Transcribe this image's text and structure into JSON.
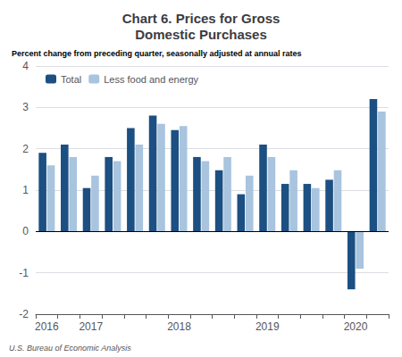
{
  "chart_data": {
    "type": "bar",
    "title": "Chart 6. Prices for Gross\nDomestic Purchases",
    "subtitle": "Percent change from preceding quarter, seasonally adjusted at annual rates",
    "annotations": [
      "U.S. Bureau of Economic Analysis"
    ],
    "categories": [
      "2016",
      null,
      "2017",
      null,
      null,
      null,
      "2018",
      null,
      null,
      null,
      "2019",
      null,
      null,
      null,
      "2020",
      null
    ],
    "series": [
      {
        "name": "Total",
        "color": "#1c4f82",
        "values": [
          1.9,
          2.1,
          1.05,
          1.8,
          2.5,
          2.8,
          2.45,
          1.8,
          1.48,
          0.9,
          2.1,
          1.15,
          1.15,
          1.25,
          -1.4,
          3.2
        ]
      },
      {
        "name": "Less food and energy",
        "color": "#a8c4de",
        "values": [
          1.6,
          1.8,
          1.35,
          1.7,
          2.1,
          2.6,
          2.55,
          1.7,
          1.8,
          1.35,
          1.8,
          1.48,
          1.05,
          1.48,
          -0.9,
          2.9
        ]
      }
    ],
    "ylim": [
      -2,
      4
    ],
    "yticks": [
      -2,
      -1,
      0,
      1,
      2,
      3,
      4
    ],
    "grid": true,
    "legend": "upper left"
  }
}
